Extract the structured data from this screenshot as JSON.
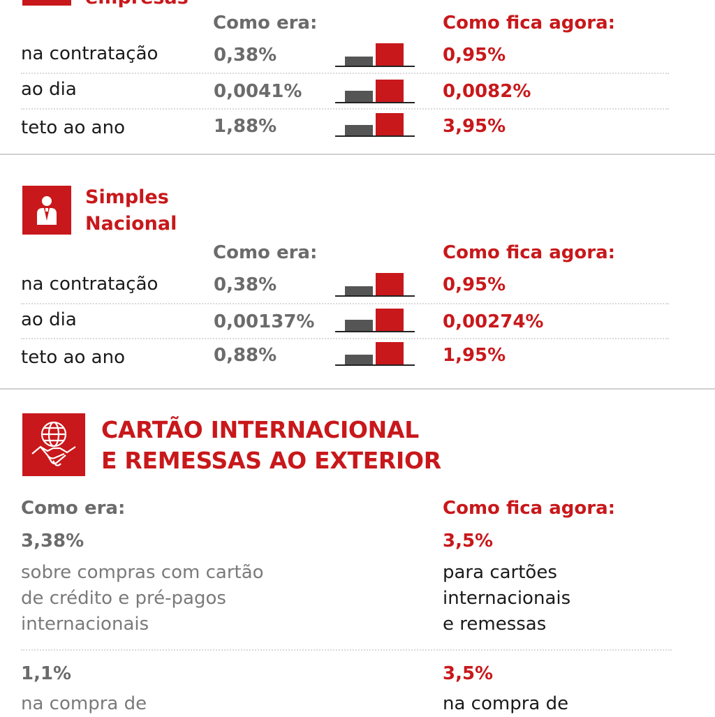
{
  "colors": {
    "accent": "#c8181b",
    "old_bar": "#555555",
    "text_gray": "#6b6b6b"
  },
  "empresas": {
    "title_partial": "empresas",
    "col_old": "Como era:",
    "col_new": "Como fica agora:",
    "rows": [
      {
        "label": "na contratação",
        "old": "0,38%",
        "new": "0,95%",
        "old_num": 0.38,
        "new_num": 0.95
      },
      {
        "label": "ao dia",
        "old": "0,0041%",
        "new": "0,0082%",
        "old_num": 0.0041,
        "new_num": 0.0082
      },
      {
        "label": "teto ao ano",
        "old": "1,88%",
        "new": "3,95%",
        "old_num": 1.88,
        "new_num": 3.95
      }
    ]
  },
  "simples": {
    "title_line1": "Simples",
    "title_line2": "Nacional",
    "icon": "person-icon",
    "col_old": "Como era:",
    "col_new": "Como fica agora:",
    "rows": [
      {
        "label": "na contratação",
        "old": "0,38%",
        "new": "0,95%",
        "old_num": 0.38,
        "new_num": 0.95
      },
      {
        "label": "ao dia",
        "old": "0,00137%",
        "new": "0,00274%",
        "old_num": 0.00137,
        "new_num": 0.00274
      },
      {
        "label": "teto ao ano",
        "old": "0,88%",
        "new": "1,95%",
        "old_num": 0.88,
        "new_num": 1.95
      }
    ]
  },
  "cartao": {
    "title_line1": "CARTÃO INTERNACIONAL",
    "title_line2": "E REMESSAS AO EXTERIOR",
    "icon": "globe-handshake-icon",
    "col_old": "Como era:",
    "col_new": "Como fica agora:",
    "item1": {
      "old_value": "3,38%",
      "old_desc": [
        "sobre compras com cartão",
        "de crédito e pré-pagos",
        "internacionais"
      ],
      "new_value": "3,5%",
      "new_desc": [
        "para cartões",
        "internacionais",
        "e remessas"
      ]
    },
    "item2": {
      "old_value": "1,1%",
      "old_desc": [
        "na compra de"
      ],
      "new_value": "3,5%",
      "new_desc": [
        "na compra de"
      ]
    }
  }
}
